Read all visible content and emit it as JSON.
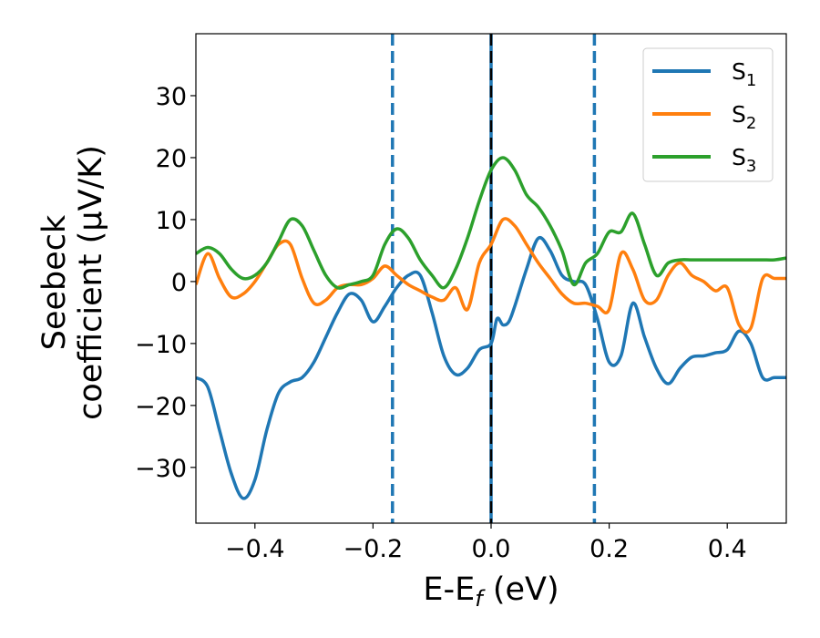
{
  "chart_data": {
    "type": "line",
    "xlabel": "E-E_f (eV)",
    "ylabel_lines": [
      "Seebeck",
      "coefficient  (μV/K)"
    ],
    "xlim": [
      -0.5,
      0.5
    ],
    "ylim": [
      -39,
      40
    ],
    "xticks": [
      -0.4,
      -0.2,
      0.0,
      0.2,
      0.4
    ],
    "xtick_labels": [
      "−0.4",
      "−0.2",
      "0.0",
      "0.2",
      "0.4"
    ],
    "yticks": [
      -30,
      -20,
      -10,
      0,
      10,
      20,
      30
    ],
    "ytick_labels": [
      "−30",
      "−20",
      "−10",
      "0",
      "10",
      "20",
      "30"
    ],
    "grid": false,
    "legend_position": "top-right",
    "vlines": [
      {
        "x": -0.167,
        "style": "dashed",
        "color": "#1f77b4"
      },
      {
        "x": 0.0,
        "style": "solid",
        "color": "#1f77b4"
      },
      {
        "x": 0.0,
        "style": "dashed",
        "color": "#000000"
      },
      {
        "x": 0.175,
        "style": "dashed",
        "color": "#1f77b4"
      }
    ],
    "series": [
      {
        "name": "S",
        "sub": "1",
        "color": "#1f77b4",
        "x": [
          -0.5,
          -0.48,
          -0.46,
          -0.44,
          -0.42,
          -0.4,
          -0.38,
          -0.36,
          -0.34,
          -0.32,
          -0.3,
          -0.28,
          -0.26,
          -0.24,
          -0.22,
          -0.2,
          -0.18,
          -0.16,
          -0.14,
          -0.12,
          -0.1,
          -0.08,
          -0.06,
          -0.04,
          -0.02,
          0.0,
          0.01,
          0.02,
          0.03,
          0.04,
          0.06,
          0.08,
          0.1,
          0.12,
          0.14,
          0.16,
          0.18,
          0.2,
          0.22,
          0.24,
          0.26,
          0.28,
          0.3,
          0.32,
          0.34,
          0.36,
          0.38,
          0.4,
          0.42,
          0.44,
          0.46,
          0.48,
          0.5
        ],
        "y": [
          -15.5,
          -17,
          -24,
          -31,
          -35,
          -32,
          -24,
          -18,
          -16.2,
          -15.5,
          -13,
          -9,
          -5,
          -2,
          -3,
          -6.5,
          -4,
          -1,
          1,
          1,
          -5,
          -12,
          -15,
          -14,
          -11,
          -10,
          -6,
          -7,
          -6.5,
          -4,
          2,
          7,
          5,
          1,
          0,
          -0.5,
          -6,
          -13,
          -12,
          -3.5,
          -9,
          -14,
          -16.5,
          -14,
          -12.2,
          -12,
          -11.5,
          -11,
          -8,
          -10,
          -15.5,
          -15.5,
          -15.5
        ]
      },
      {
        "name": "S",
        "sub": "2",
        "color": "#ff7f0e",
        "x": [
          -0.5,
          -0.48,
          -0.46,
          -0.44,
          -0.42,
          -0.4,
          -0.38,
          -0.36,
          -0.34,
          -0.32,
          -0.3,
          -0.28,
          -0.26,
          -0.24,
          -0.22,
          -0.2,
          -0.18,
          -0.16,
          -0.14,
          -0.12,
          -0.1,
          -0.08,
          -0.06,
          -0.04,
          -0.02,
          0.0,
          0.02,
          0.04,
          0.06,
          0.08,
          0.1,
          0.12,
          0.14,
          0.16,
          0.18,
          0.2,
          0.22,
          0.24,
          0.26,
          0.28,
          0.3,
          0.32,
          0.34,
          0.36,
          0.38,
          0.4,
          0.42,
          0.44,
          0.46,
          0.48,
          0.5
        ],
        "y": [
          -0.5,
          4.5,
          0.5,
          -2.5,
          -2,
          0,
          3,
          6,
          6,
          0.5,
          -3.5,
          -3,
          -1,
          -0.5,
          -0.5,
          0.5,
          2.5,
          1,
          -0.5,
          -1.5,
          -2.5,
          -3,
          -1,
          -4.5,
          3,
          6,
          10,
          9,
          6,
          3,
          0.5,
          -2,
          -3.5,
          -3.5,
          -4,
          -4.5,
          4.5,
          2,
          -3,
          -3,
          1,
          3,
          1,
          0,
          -1.5,
          -1,
          -7,
          -7.5,
          0.5,
          0.5,
          0.5
        ]
      },
      {
        "name": "S",
        "sub": "3",
        "color": "#2ca02c",
        "x": [
          -0.5,
          -0.48,
          -0.46,
          -0.44,
          -0.42,
          -0.4,
          -0.38,
          -0.36,
          -0.34,
          -0.32,
          -0.3,
          -0.28,
          -0.26,
          -0.24,
          -0.22,
          -0.2,
          -0.18,
          -0.16,
          -0.14,
          -0.12,
          -0.1,
          -0.08,
          -0.06,
          -0.04,
          -0.02,
          0.0,
          0.02,
          0.04,
          0.06,
          0.08,
          0.1,
          0.12,
          0.14,
          0.16,
          0.18,
          0.2,
          0.22,
          0.24,
          0.26,
          0.28,
          0.3,
          0.32,
          0.34,
          0.36,
          0.38,
          0.4,
          0.42,
          0.44,
          0.46,
          0.48,
          0.5
        ],
        "y": [
          4.5,
          5.5,
          4.5,
          2,
          0.5,
          1,
          3,
          6.5,
          10,
          9,
          5,
          1,
          -1,
          -0.5,
          0,
          1,
          6,
          8.5,
          7,
          3.5,
          1,
          -1,
          2,
          7,
          13,
          18,
          20,
          18,
          14,
          12,
          9,
          5,
          -0.5,
          3,
          4.5,
          8,
          8,
          11,
          6,
          1,
          3,
          3.5,
          3.5,
          3.5,
          3.5,
          3.5,
          3.5,
          3.5,
          3.5,
          3.5,
          3.8
        ]
      }
    ]
  }
}
